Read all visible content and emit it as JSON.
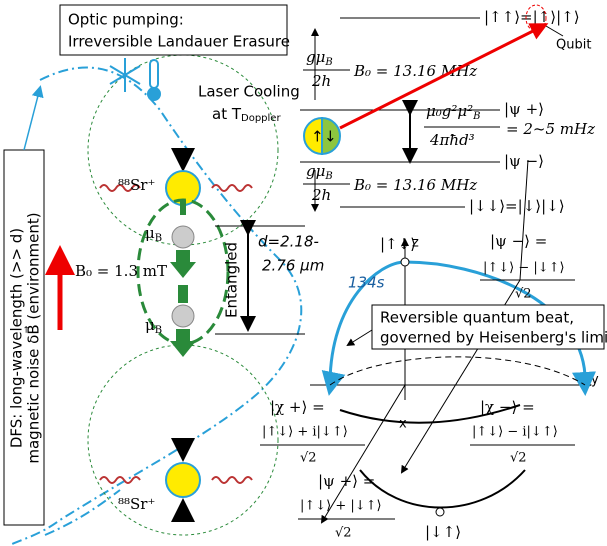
{
  "pumping": {
    "line1": "Optic pumping:",
    "line2": "Irreversible Landauer Erasure"
  },
  "levels": {
    "top": "|↑↑⟩=|↑⟩|↑⟩",
    "qubit": "Qubit",
    "splitting_num": "gμ",
    "splitting_num_sub": "B",
    "splitting_den": "2h",
    "splitting_value": "B₀ = 13.16 MHz",
    "psi_plus": "|ψ +⟩",
    "psi_minus": "|ψ −⟩",
    "spin_up": "↑",
    "spin_down": "↓",
    "coupling_num": "μ₀g²μ²",
    "coupling_num_sub": "B",
    "coupling_den": "4πħd³",
    "coupling_value": "= 2~5 mHz",
    "bottom": "|↓↓⟩=|↓⟩|↓⟩"
  },
  "trap": {
    "cooling_line1": "Laser Cooling",
    "cooling_line2": "at T",
    "cooling_sub": "Doppler",
    "ion_top": "⁸⁸Sr⁺",
    "ion_bottom": "⁸⁸Sr⁺",
    "moment": "μ",
    "moment_sub": "B",
    "field": "B₀ = 1.3 mT",
    "entangled": "Entangled",
    "distance_line1": "d=2.18-",
    "distance_line2": "2.76 μm",
    "dfs_line1": "DFS: long-wavelength (>> d)",
    "dfs_line2": "magnetic noise δB⃗ (environment)"
  },
  "bloch": {
    "north": "|↑↓⟩",
    "z": "z",
    "y": "y",
    "x": "x",
    "time": "134s",
    "psi_minus_lhs": "|ψ −⟩ =",
    "psi_minus_num": "|↑↓⟩ − |↓↑⟩",
    "sqrt2": "√2",
    "beat_line1": "Reversible quantum beat,",
    "beat_line2": "governed by Heisenberg's limit",
    "chi_plus_lhs": "|χ +⟩ =",
    "chi_plus_num": "|↑↓⟩ + i|↓↑⟩",
    "chi_minus_lhs": "|χ −⟩ =",
    "chi_minus_num": "|↑↓⟩ − i|↓↑⟩",
    "psi_plus_lhs": "|ψ +⟩ =",
    "psi_plus_num": "|↑↓⟩ + |↓↑⟩",
    "south": "|↓↑⟩"
  }
}
